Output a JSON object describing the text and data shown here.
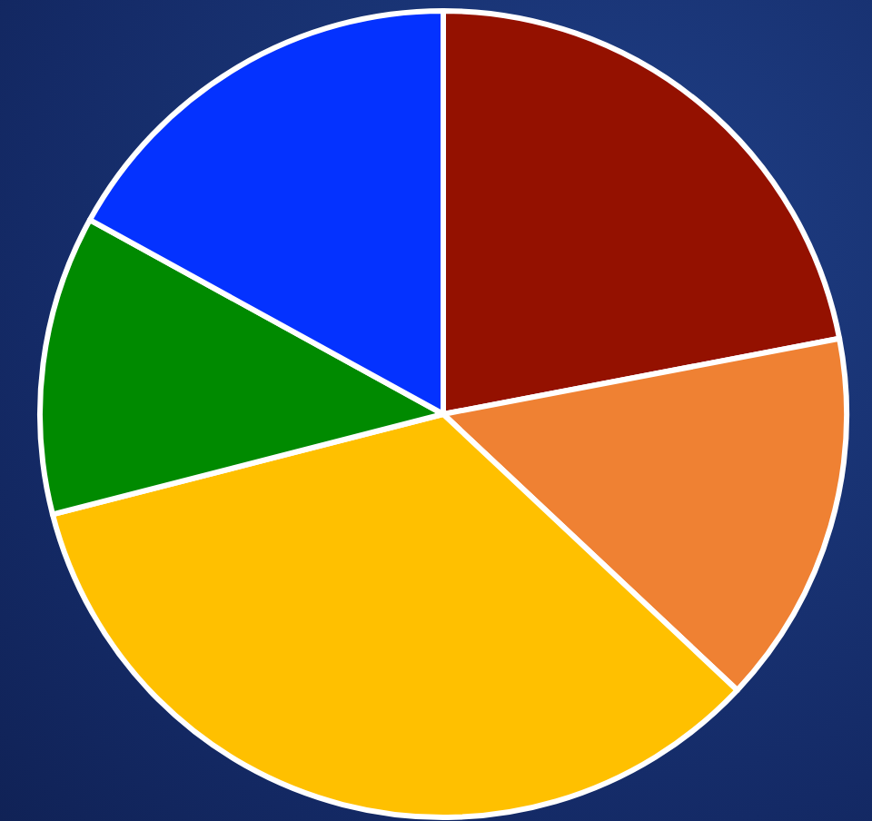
{
  "chart_data": {
    "type": "pie",
    "categories": [
      null,
      null,
      null,
      null,
      null
    ],
    "values": [
      22,
      15,
      34,
      12,
      17
    ],
    "colors": [
      "#941100",
      "#ef8133",
      "#ffc000",
      "#008a00",
      "#0432ff"
    ]
  }
}
